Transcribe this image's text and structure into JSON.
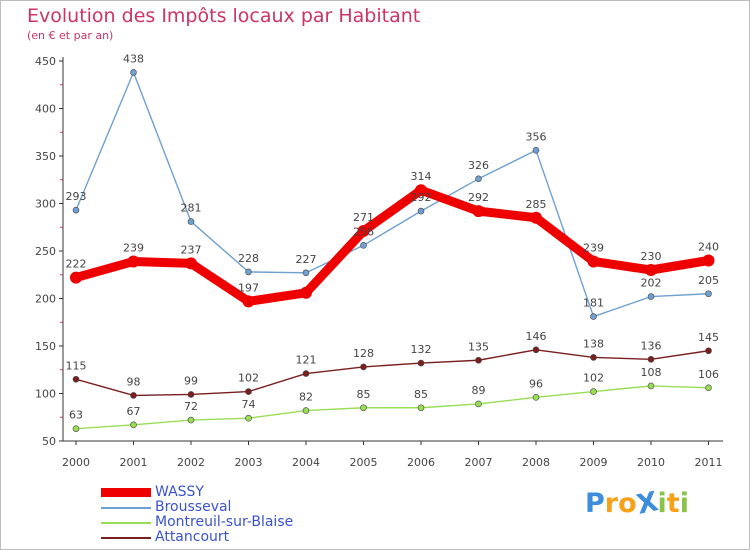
{
  "title": "Evolution des Impôts locaux par Habitant",
  "subtitle": "(en € et par an)",
  "logo": {
    "text": "ProXiti",
    "letters": [
      "P",
      "r",
      "o",
      "X",
      "i",
      "t",
      "i"
    ],
    "colors": [
      "#3d8ddb",
      "#f7a11b",
      "#f7a11b",
      "#3d8ddb",
      "#8bc34a",
      "#f7a11b",
      "#8bc34a"
    ]
  },
  "chart_data": {
    "type": "line",
    "x": [
      "2000",
      "2001",
      "2002",
      "2003",
      "2004",
      "2005",
      "2006",
      "2007",
      "2008",
      "2009",
      "2010",
      "2011"
    ],
    "ylim": [
      50,
      450
    ],
    "yticks": [
      50,
      100,
      150,
      200,
      250,
      300,
      350,
      400,
      450
    ],
    "grid": false,
    "legend_position": "bottom-left",
    "series": [
      {
        "name": "WASSY",
        "color": "#ee0000",
        "values": [
          222,
          239,
          237,
          197,
          206,
          271,
          314,
          292,
          285,
          239,
          230,
          240
        ],
        "labels": [
          "222",
          "239",
          "237",
          "197",
          "",
          "271",
          "314",
          "292",
          "285",
          "239",
          "230",
          "240"
        ]
      },
      {
        "name": "Brousseval",
        "color": "#6fa0d0",
        "values": [
          293,
          438,
          281,
          228,
          227,
          256,
          292,
          326,
          356,
          181,
          202,
          205
        ],
        "labels": [
          "293",
          "438",
          "281",
          "228",
          "227",
          "256",
          "292",
          "326",
          "356",
          "181",
          "202",
          "205"
        ]
      },
      {
        "name": "Montreuil-sur-Blaise",
        "color": "#99dd55",
        "values": [
          63,
          67,
          72,
          74,
          82,
          85,
          85,
          89,
          96,
          102,
          108,
          106
        ],
        "labels": [
          "63",
          "67",
          "72",
          "74",
          "82",
          "85",
          "85",
          "89",
          "96",
          "102",
          "108",
          "106"
        ]
      },
      {
        "name": "Attancourt",
        "color": "#7a1f1f",
        "values": [
          115,
          98,
          99,
          102,
          121,
          128,
          132,
          135,
          146,
          138,
          136,
          145
        ],
        "labels": [
          "115",
          "98",
          "99",
          "102",
          "121",
          "128",
          "132",
          "135",
          "146",
          "138",
          "136",
          "145"
        ]
      }
    ]
  }
}
